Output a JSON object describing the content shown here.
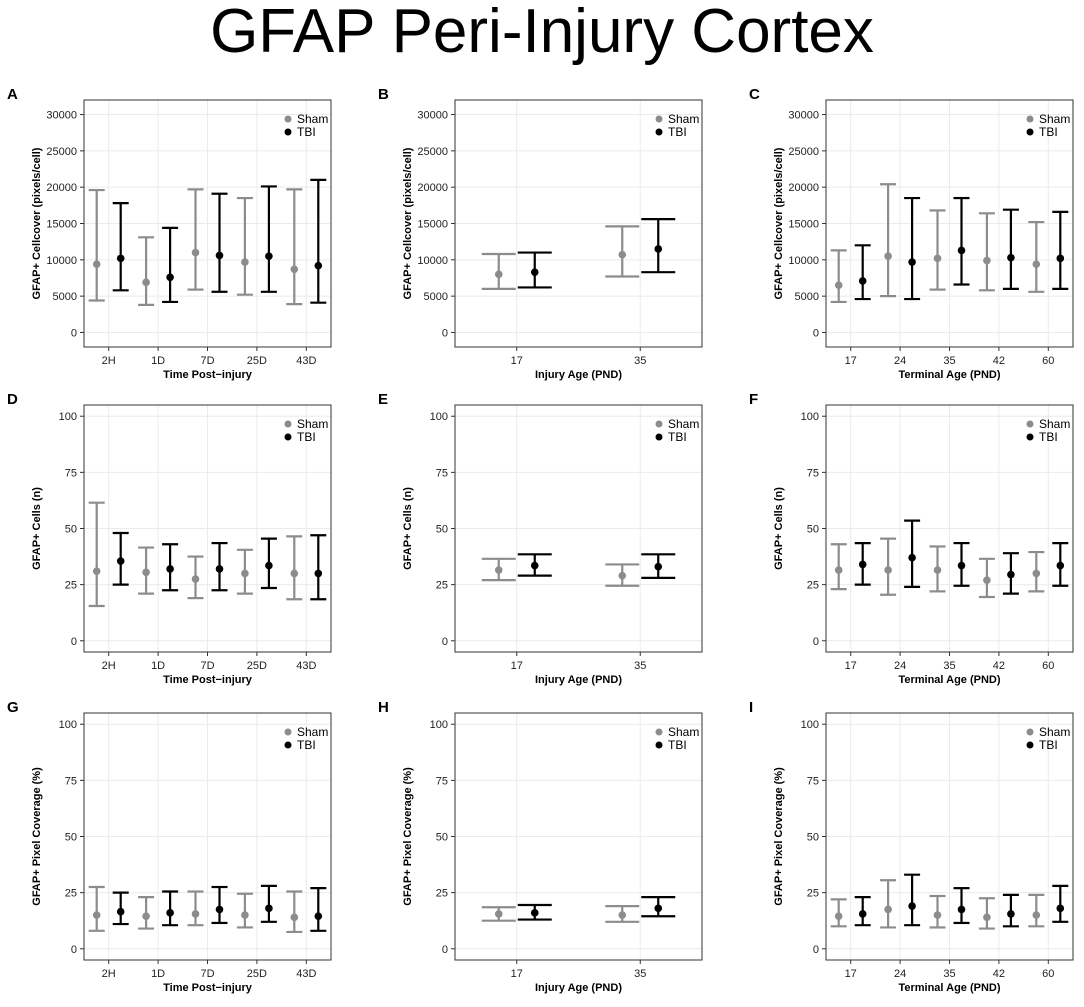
{
  "figure_title": "GFAP Peri-Injury Cortex",
  "colors": {
    "sham": "#8c8c8c",
    "tbi": "#000000",
    "grid": "#ebebeb",
    "panel_border": "#333333"
  },
  "chart_data": [
    {
      "panel": "A",
      "type": "scatter",
      "error_bars": true,
      "xlabel": "Time Post−injury",
      "ylabel": "GFAP+ Cellcover (pixels/cell)",
      "ylim": [
        -2000,
        32000
      ],
      "yticks": [
        0,
        5000,
        10000,
        15000,
        20000,
        25000,
        30000
      ],
      "categories": [
        "2H",
        "1D",
        "7D",
        "25D",
        "43D"
      ],
      "legend": "top-right",
      "grid": true,
      "series": [
        {
          "name": "Sham",
          "values": [
            9400,
            6900,
            11000,
            9700,
            8700
          ],
          "lower": [
            4400,
            3800,
            5900,
            5200,
            3900
          ],
          "upper": [
            19600,
            13100,
            19700,
            18500,
            19700
          ]
        },
        {
          "name": "TBI",
          "values": [
            10200,
            7600,
            10600,
            10500,
            9200
          ],
          "lower": [
            5800,
            4200,
            5600,
            5600,
            4100
          ],
          "upper": [
            17800,
            14400,
            19100,
            20100,
            21000
          ]
        }
      ]
    },
    {
      "panel": "B",
      "type": "scatter",
      "error_bars": true,
      "xlabel": "Injury Age (PND)",
      "ylabel": "GFAP+ Cellcover (pixels/cell)",
      "ylim": [
        -2000,
        32000
      ],
      "yticks": [
        0,
        5000,
        10000,
        15000,
        20000,
        25000,
        30000
      ],
      "categories": [
        "17",
        "35"
      ],
      "legend": "top-right",
      "grid": true,
      "series": [
        {
          "name": "Sham",
          "values": [
            8000,
            10700
          ],
          "lower": [
            6000,
            7700
          ],
          "upper": [
            10800,
            14600
          ]
        },
        {
          "name": "TBI",
          "values": [
            8300,
            11500
          ],
          "lower": [
            6200,
            8300
          ],
          "upper": [
            11000,
            15600
          ]
        }
      ]
    },
    {
      "panel": "C",
      "type": "scatter",
      "error_bars": true,
      "xlabel": "Terminal Age (PND)",
      "ylabel": "GFAP+ Cellcover (pixels/cell)",
      "ylim": [
        -2000,
        32000
      ],
      "yticks": [
        0,
        5000,
        10000,
        15000,
        20000,
        25000,
        30000
      ],
      "categories": [
        "17",
        "24",
        "35",
        "42",
        "60"
      ],
      "legend": "top-right",
      "grid": true,
      "series": [
        {
          "name": "Sham",
          "values": [
            6500,
            10500,
            10200,
            9900,
            9400
          ],
          "lower": [
            4200,
            5000,
            5900,
            5800,
            5600
          ],
          "upper": [
            11300,
            20400,
            16800,
            16400,
            15200
          ]
        },
        {
          "name": "TBI",
          "values": [
            7100,
            9700,
            11300,
            10300,
            10200
          ],
          "lower": [
            4600,
            4600,
            6600,
            6000,
            6000
          ],
          "upper": [
            12000,
            18500,
            18500,
            16900,
            16600
          ]
        }
      ]
    },
    {
      "panel": "D",
      "type": "scatter",
      "error_bars": true,
      "xlabel": "Time Post−injury",
      "ylabel": "GFAP+ Cells (n)",
      "ylim": [
        -5,
        105
      ],
      "yticks": [
        0,
        25,
        50,
        75,
        100
      ],
      "categories": [
        "2H",
        "1D",
        "7D",
        "25D",
        "43D"
      ],
      "legend": "top-right",
      "grid": true,
      "series": [
        {
          "name": "Sham",
          "values": [
            31,
            30.5,
            27.5,
            30,
            30
          ],
          "lower": [
            15.5,
            21,
            19,
            21,
            18.5
          ],
          "upper": [
            61.5,
            41.5,
            37.5,
            40.5,
            46.5
          ]
        },
        {
          "name": "TBI",
          "values": [
            35.5,
            32,
            32,
            33.5,
            30
          ],
          "lower": [
            25,
            22.5,
            22.5,
            23.5,
            18.5
          ],
          "upper": [
            48,
            43,
            43.5,
            45.5,
            47
          ]
        }
      ]
    },
    {
      "panel": "E",
      "type": "scatter",
      "error_bars": true,
      "xlabel": "Injury Age (PND)",
      "ylabel": "GFAP+ Cells (n)",
      "ylim": [
        -5,
        105
      ],
      "yticks": [
        0,
        25,
        50,
        75,
        100
      ],
      "categories": [
        "17",
        "35"
      ],
      "legend": "top-right",
      "grid": true,
      "series": [
        {
          "name": "Sham",
          "values": [
            31.5,
            29
          ],
          "lower": [
            27,
            24.5
          ],
          "upper": [
            36.5,
            34
          ]
        },
        {
          "name": "TBI",
          "values": [
            33.5,
            33
          ],
          "lower": [
            29,
            28
          ],
          "upper": [
            38.5,
            38.5
          ]
        }
      ]
    },
    {
      "panel": "F",
      "type": "scatter",
      "error_bars": true,
      "xlabel": "Terminal Age (PND)",
      "ylabel": "GFAP+ Cells (n)",
      "ylim": [
        -5,
        105
      ],
      "yticks": [
        0,
        25,
        50,
        75,
        100
      ],
      "categories": [
        "17",
        "24",
        "35",
        "42",
        "60"
      ],
      "legend": "top-right",
      "grid": true,
      "series": [
        {
          "name": "Sham",
          "values": [
            31.5,
            31.5,
            31.5,
            27,
            30
          ],
          "lower": [
            23,
            20.5,
            22,
            19.5,
            22
          ],
          "upper": [
            43,
            45.5,
            42,
            36.5,
            39.5
          ]
        },
        {
          "name": "TBI",
          "values": [
            34,
            37,
            33.5,
            29.5,
            33.5
          ],
          "lower": [
            25,
            24,
            24.5,
            21,
            24.5
          ],
          "upper": [
            43.5,
            53.5,
            43.5,
            39,
            43.5
          ]
        }
      ]
    },
    {
      "panel": "G",
      "type": "scatter",
      "error_bars": true,
      "xlabel": "Time Post−injury",
      "ylabel": "GFAP+ Pixel Coverage (%)",
      "ylim": [
        -5,
        105
      ],
      "yticks": [
        0,
        25,
        50,
        75,
        100
      ],
      "categories": [
        "2H",
        "1D",
        "7D",
        "25D",
        "43D"
      ],
      "legend": "top-right",
      "grid": true,
      "series": [
        {
          "name": "Sham",
          "values": [
            15,
            14.5,
            15.5,
            15,
            14
          ],
          "lower": [
            8,
            9,
            10.5,
            9.5,
            7.5
          ],
          "upper": [
            27.5,
            23,
            25.5,
            24.5,
            25.5
          ]
        },
        {
          "name": "TBI",
          "values": [
            16.5,
            16,
            17.5,
            18,
            14.5
          ],
          "lower": [
            11,
            10.5,
            11.5,
            12,
            8
          ],
          "upper": [
            25,
            25.5,
            27.5,
            28,
            27
          ]
        }
      ]
    },
    {
      "panel": "H",
      "type": "scatter",
      "error_bars": true,
      "xlabel": "Injury Age (PND)",
      "ylabel": "GFAP+ Pixel Coverage (%)",
      "ylim": [
        -5,
        105
      ],
      "yticks": [
        0,
        25,
        50,
        75,
        100
      ],
      "categories": [
        "17",
        "35"
      ],
      "legend": "top-right",
      "grid": true,
      "series": [
        {
          "name": "Sham",
          "values": [
            15.5,
            15
          ],
          "lower": [
            12.5,
            12
          ],
          "upper": [
            18.5,
            19
          ]
        },
        {
          "name": "TBI",
          "values": [
            16,
            18
          ],
          "lower": [
            13,
            14.5
          ],
          "upper": [
            19.5,
            23
          ]
        }
      ]
    },
    {
      "panel": "I",
      "type": "scatter",
      "error_bars": true,
      "xlabel": "Terminal Age (PND)",
      "ylabel": "GFAP+ Pixel Coverage (%)",
      "ylim": [
        -5,
        105
      ],
      "yticks": [
        0,
        25,
        50,
        75,
        100
      ],
      "categories": [
        "17",
        "24",
        "35",
        "42",
        "60"
      ],
      "legend": "top-right",
      "grid": true,
      "series": [
        {
          "name": "Sham",
          "values": [
            14.5,
            17.5,
            15,
            14,
            15
          ],
          "lower": [
            10,
            9.5,
            9.5,
            9,
            10
          ],
          "upper": [
            22,
            30.5,
            23.5,
            22.5,
            24
          ]
        },
        {
          "name": "TBI",
          "values": [
            15.5,
            19,
            17.5,
            15.5,
            18
          ],
          "lower": [
            10.5,
            10.5,
            11.5,
            10,
            12
          ],
          "upper": [
            23,
            33,
            27,
            24,
            28
          ]
        }
      ]
    }
  ]
}
